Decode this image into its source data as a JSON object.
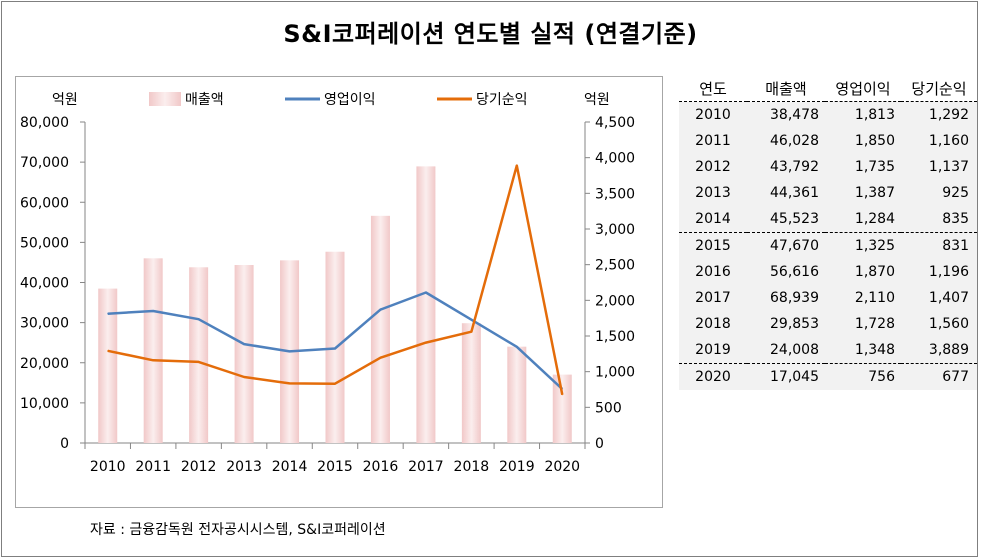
{
  "title": "S&I코퍼레이션 연도별 실적 (연결기준)",
  "source": "자료 : 금융감독원 전자공시시스템, S&I코퍼레이션",
  "colors": {
    "bar": "#f1c8c8",
    "operating": "#4f81bd",
    "net": "#e46c0a"
  },
  "table": {
    "headers": [
      "연도",
      "매출액",
      "영업이익",
      "당기순익"
    ],
    "rows": [
      [
        "2010",
        "38,478",
        "1,813",
        "1,292"
      ],
      [
        "2011",
        "46,028",
        "1,850",
        "1,160"
      ],
      [
        "2012",
        "43,792",
        "1,735",
        "1,137"
      ],
      [
        "2013",
        "44,361",
        "1,387",
        "925"
      ],
      [
        "2014",
        "45,523",
        "1,284",
        "835"
      ],
      [
        "2015",
        "47,670",
        "1,325",
        "831"
      ],
      [
        "2016",
        "56,616",
        "1,870",
        "1,196"
      ],
      [
        "2017",
        "68,939",
        "2,110",
        "1,407"
      ],
      [
        "2018",
        "29,853",
        "1,728",
        "1,560"
      ],
      [
        "2019",
        "24,008",
        "1,348",
        "3,889"
      ],
      [
        "2020",
        "17,045",
        "756",
        "677"
      ]
    ]
  },
  "chart_data": {
    "type": "bar",
    "categories": [
      "2010",
      "2011",
      "2012",
      "2013",
      "2014",
      "2015",
      "2016",
      "2017",
      "2018",
      "2019",
      "2020"
    ],
    "series": [
      {
        "name": "매출액",
        "type": "bar",
        "axis": "left",
        "values": [
          38478,
          46028,
          43792,
          44361,
          45523,
          47670,
          56616,
          68939,
          29853,
          24008,
          17045
        ]
      },
      {
        "name": "영업이익",
        "type": "line",
        "axis": "right",
        "values": [
          1813,
          1850,
          1735,
          1387,
          1284,
          1325,
          1870,
          2110,
          1728,
          1348,
          756
        ]
      },
      {
        "name": "당기순익",
        "type": "line",
        "axis": "right",
        "values": [
          1292,
          1160,
          1137,
          925,
          835,
          831,
          1196,
          1407,
          1560,
          3889,
          677
        ]
      }
    ],
    "ylabel_left": "억원",
    "ylabel_right": "억원",
    "ylim_left": [
      0,
      80000
    ],
    "ylim_right": [
      0,
      4500
    ],
    "yticks_left": [
      "0",
      "10,000",
      "20,000",
      "30,000",
      "40,000",
      "50,000",
      "60,000",
      "70,000",
      "80,000"
    ],
    "yticks_right": [
      "0",
      "500",
      "1,000",
      "1,500",
      "2,000",
      "2,500",
      "3,000",
      "3,500",
      "4,000",
      "4,500"
    ],
    "grid": false,
    "legend": "top"
  }
}
